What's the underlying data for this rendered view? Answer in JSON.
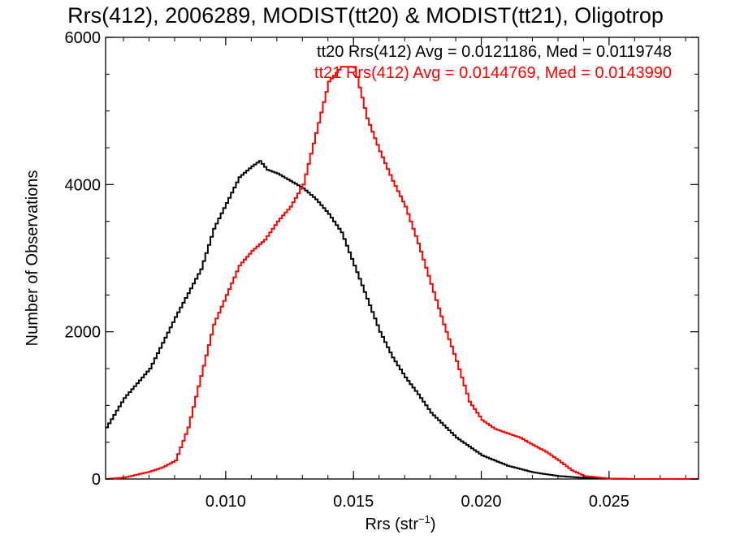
{
  "chart_data": {
    "type": "line",
    "title": "Rrs(412), 2006289, MODIST(tt20) & MODIST(tt21), Oligotrop",
    "xlabel": "Rrs (str",
    "xlabel_sup": "−1",
    "xlabel_suffix": ")",
    "ylabel": "Number of Observations",
    "xlim": [
      0.0053,
      0.0285
    ],
    "ylim": [
      0,
      6000
    ],
    "x_ticks": [
      0.01,
      0.015,
      0.02,
      0.025
    ],
    "x_tick_labels": [
      "0.010",
      "0.015",
      "0.020",
      "0.025"
    ],
    "y_ticks": [
      0,
      2000,
      4000,
      6000
    ],
    "y_tick_labels": [
      "0",
      "2000",
      "4000",
      "6000"
    ],
    "grid": false,
    "legend_position": "top-right",
    "series": [
      {
        "name": "tt20",
        "color": "#000000",
        "legend_text": "tt20 Rrs(412) Avg = 0.0121186, Med = 0.0119748",
        "x": [
          0.0053,
          0.006,
          0.007,
          0.008,
          0.009,
          0.0095,
          0.01,
          0.0105,
          0.011,
          0.0113,
          0.0116,
          0.012,
          0.0125,
          0.013,
          0.0135,
          0.014,
          0.0145,
          0.015,
          0.0155,
          0.016,
          0.0165,
          0.017,
          0.0175,
          0.018,
          0.019,
          0.02,
          0.021,
          0.022,
          0.023,
          0.024,
          0.025,
          0.026,
          0.0285
        ],
        "y": [
          700,
          1100,
          1500,
          2200,
          2850,
          3400,
          3750,
          4100,
          4250,
          4320,
          4200,
          4150,
          4050,
          3950,
          3800,
          3600,
          3350,
          2900,
          2450,
          2000,
          1650,
          1380,
          1150,
          900,
          560,
          320,
          180,
          90,
          40,
          15,
          5,
          0,
          0
        ]
      },
      {
        "name": "tt21",
        "color": "#ff0000",
        "legend_text": "tt21 Rrs(412) Avg = 0.0144769, Med = 0.0143990",
        "x": [
          0.0053,
          0.006,
          0.007,
          0.0075,
          0.008,
          0.0085,
          0.009,
          0.0095,
          0.01,
          0.0105,
          0.011,
          0.0115,
          0.012,
          0.0125,
          0.013,
          0.0135,
          0.014,
          0.0145,
          0.015,
          0.0155,
          0.016,
          0.0165,
          0.017,
          0.0175,
          0.018,
          0.0185,
          0.019,
          0.0195,
          0.02,
          0.0205,
          0.021,
          0.0215,
          0.022,
          0.0225,
          0.023,
          0.0235,
          0.024,
          0.025,
          0.026,
          0.0285
        ],
        "y": [
          0,
          20,
          100,
          160,
          250,
          700,
          1400,
          2100,
          2500,
          2900,
          3100,
          3250,
          3500,
          3700,
          4000,
          4700,
          5400,
          5600,
          5600,
          4900,
          4450,
          4050,
          3700,
          3200,
          2650,
          2100,
          1600,
          1050,
          800,
          680,
          620,
          560,
          460,
          370,
          250,
          120,
          40,
          5,
          0,
          0
        ]
      }
    ]
  }
}
